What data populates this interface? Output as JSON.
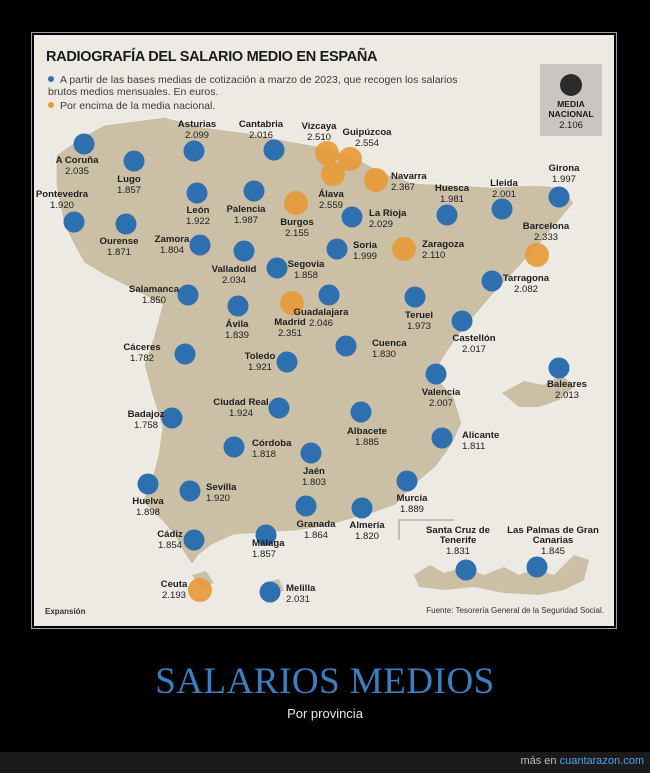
{
  "title": "RADIOGRAFÍA DEL SALARIO MEDIO EN ESPAÑA",
  "legend": {
    "blue_text": "A partir de las bases medias de cotización a marzo de 2023, que recogen los salarios brutos medios mensuales. En euros.",
    "orange_text": "Por encima de la media nacional.",
    "blue_color": "#2e6fb0",
    "orange_color": "#e79a3a"
  },
  "national": {
    "label": "MEDIA NACIONAL",
    "value": "2.106"
  },
  "provinces": [
    {
      "name": "A Coruña",
      "value": "2.035",
      "above": false
    },
    {
      "name": "Lugo",
      "value": "1.857",
      "above": false
    },
    {
      "name": "Asturias",
      "value": "2.099",
      "above": false
    },
    {
      "name": "Cantabria",
      "value": "2.016",
      "above": false
    },
    {
      "name": "Vizcaya",
      "value": "2.510",
      "above": true
    },
    {
      "name": "Guipúzcoa",
      "value": "2.554",
      "above": true
    },
    {
      "name": "Álava",
      "value": "2.559",
      "above": true
    },
    {
      "name": "Navarra",
      "value": "2.367",
      "above": true
    },
    {
      "name": "Huesca",
      "value": "1.981",
      "above": false
    },
    {
      "name": "Lleida",
      "value": "2.001",
      "above": false
    },
    {
      "name": "Girona",
      "value": "1.997",
      "above": false
    },
    {
      "name": "Pontevedra",
      "value": "1.920",
      "above": false
    },
    {
      "name": "Ourense",
      "value": "1.871",
      "above": false
    },
    {
      "name": "León",
      "value": "1.922",
      "above": false
    },
    {
      "name": "Palencia",
      "value": "1.987",
      "above": false
    },
    {
      "name": "Burgos",
      "value": "2.155",
      "above": true
    },
    {
      "name": "La Rioja",
      "value": "2.029",
      "above": false
    },
    {
      "name": "Zamora",
      "value": "1.804",
      "above": false
    },
    {
      "name": "Valladolid",
      "value": "2.034",
      "above": false
    },
    {
      "name": "Soria",
      "value": "1.999",
      "above": false
    },
    {
      "name": "Zaragoza",
      "value": "2.110",
      "above": true
    },
    {
      "name": "Barcelona",
      "value": "2.333",
      "above": true
    },
    {
      "name": "Salamanca",
      "value": "1.850",
      "above": false
    },
    {
      "name": "Segovia",
      "value": "1.858",
      "above": false
    },
    {
      "name": "Tarragona",
      "value": "2.082",
      "above": false
    },
    {
      "name": "Ávila",
      "value": "1.839",
      "above": false
    },
    {
      "name": "Madrid",
      "value": "2.351",
      "above": true
    },
    {
      "name": "Guadalajara",
      "value": "2.046",
      "above": false
    },
    {
      "name": "Teruel",
      "value": "1.973",
      "above": false
    },
    {
      "name": "Castellón",
      "value": "2.017",
      "above": false
    },
    {
      "name": "Cáceres",
      "value": "1.782",
      "above": false
    },
    {
      "name": "Toledo",
      "value": "1.921",
      "above": false
    },
    {
      "name": "Cuenca",
      "value": "1.830",
      "above": false
    },
    {
      "name": "Baleares",
      "value": "2.013",
      "above": false
    },
    {
      "name": "Valencia",
      "value": "2.007",
      "above": false
    },
    {
      "name": "Ciudad Real",
      "value": "1.924",
      "above": false
    },
    {
      "name": "Badajoz",
      "value": "1.758",
      "above": false
    },
    {
      "name": "Albacete",
      "value": "1.885",
      "above": false
    },
    {
      "name": "Alicante",
      "value": "1.811",
      "above": false
    },
    {
      "name": "Córdoba",
      "value": "1.818",
      "above": false
    },
    {
      "name": "Jaén",
      "value": "1.803",
      "above": false
    },
    {
      "name": "Huelva",
      "value": "1.898",
      "above": false
    },
    {
      "name": "Sevilla",
      "value": "1.920",
      "above": false
    },
    {
      "name": "Murcia",
      "value": "1.889",
      "above": false
    },
    {
      "name": "Granada",
      "value": "1.864",
      "above": false
    },
    {
      "name": "Almería",
      "value": "1.820",
      "above": false
    },
    {
      "name": "Cádiz",
      "value": "1.854",
      "above": false
    },
    {
      "name": "Málaga",
      "value": "1.857",
      "above": false
    },
    {
      "name": "Santa Cruz de Tenerife",
      "value": "1.831",
      "above": false
    },
    {
      "name": "Las Palmas de Gran Canarias",
      "value": "1.845",
      "above": false
    },
    {
      "name": "Ceuta",
      "value": "2.193",
      "above": true
    },
    {
      "name": "Melilla",
      "value": "2.031",
      "above": false
    }
  ],
  "source": "Fuente: Tesorería General de la Seguridad Social.",
  "brand": "Expansión",
  "headline": "SALARIOS MEDIOS",
  "subheadline": "Por provincia",
  "footer": {
    "prefix": "más en ",
    "site": "cuantarazon.com"
  }
}
